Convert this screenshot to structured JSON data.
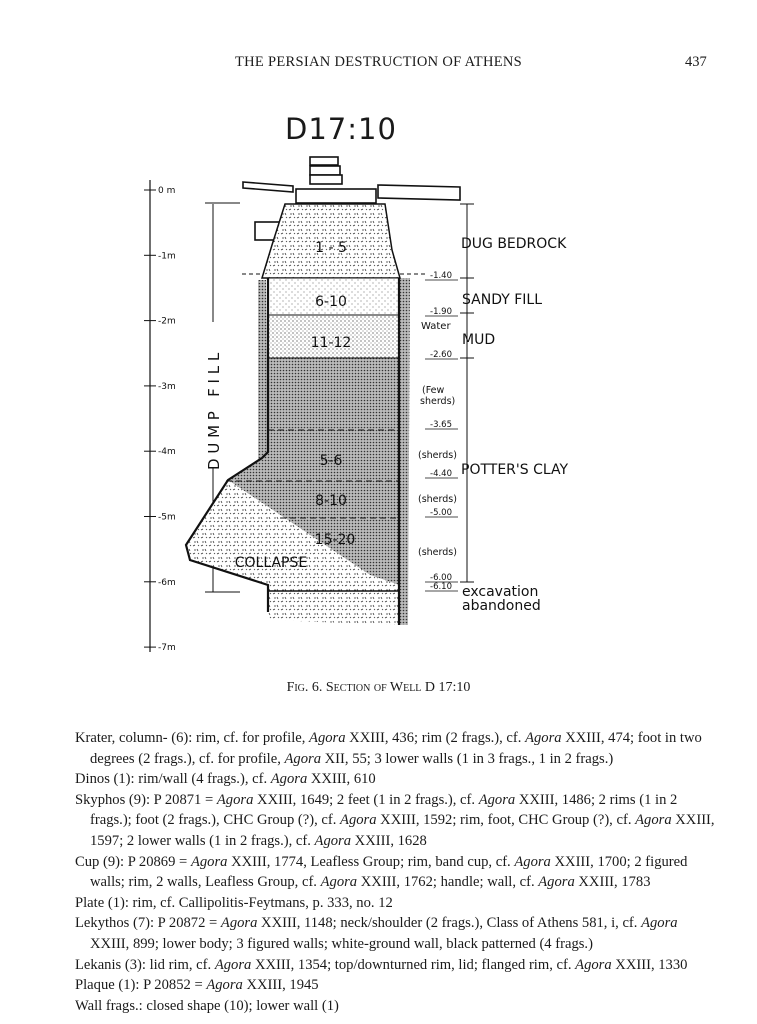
{
  "header": {
    "running_title": "THE PERSIAN DESTRUCTION OF ATHENS",
    "page_number": "437"
  },
  "figure": {
    "title": "D17:10",
    "scale_labels": [
      "0 m",
      "-1m",
      "-2m",
      "-3m",
      "-4m",
      "-5m",
      "-6m",
      "-7m"
    ],
    "dump_fill_label": "D U M P   F I L L",
    "layer_labels": [
      "1 - 5",
      "6-10",
      "11-12",
      "5-6",
      "8-10",
      "15-20",
      "COLLAPSE"
    ],
    "strata": [
      "DUG BEDROCK",
      "SANDY FILL",
      "MUD",
      "POTTER'S CLAY"
    ],
    "depths": [
      "-1.40",
      "-1.90",
      "-2.60",
      "-3.65",
      "-4.40",
      "-5.00",
      "-6.00",
      "-6.10"
    ],
    "water_label": "Water",
    "notes": [
      "(Few",
      "sherds)",
      "(sherds)",
      "(sherds)",
      "(sherds)"
    ],
    "excavation_note": [
      "excavation",
      "abandoned"
    ],
    "caption": "Fig. 6. Section of Well D 17:10"
  },
  "entries": [
    [
      {
        "t": "Krater, column- (6):  rim, cf. for profile, "
      },
      {
        "t": "Agora",
        "i": true
      },
      {
        "t": " XXIII, 436; rim (2 frags.), cf. "
      },
      {
        "t": "Agora",
        "i": true
      },
      {
        "t": " XXIII, 474; foot in two degrees (2 frags.), cf. for profile, "
      },
      {
        "t": "Agora",
        "i": true
      },
      {
        "t": " XII, 55; 3 lower walls (1 in 3 frags., 1 in 2 frags.)"
      }
    ],
    [
      {
        "t": "Dinos (1):  rim/wall (4 frags.), cf. "
      },
      {
        "t": "Agora",
        "i": true
      },
      {
        "t": " XXIII, 610"
      }
    ],
    [
      {
        "t": "Skyphos (9):  P 20871 = "
      },
      {
        "t": "Agora",
        "i": true
      },
      {
        "t": " XXIII, 1649; 2 feet (1 in 2 frags.), cf. "
      },
      {
        "t": "Agora",
        "i": true
      },
      {
        "t": " XXIII, 1486; 2 rims (1 in 2 frags.); foot (2 frags.), CHC Group (?), cf. "
      },
      {
        "t": "Agora",
        "i": true
      },
      {
        "t": " XXIII, 1592; rim, foot, CHC Group (?), cf. "
      },
      {
        "t": "Agora",
        "i": true
      },
      {
        "t": " XXIII, 1597; 2 lower walls (1 in 2 frags.), cf. "
      },
      {
        "t": "Agora",
        "i": true
      },
      {
        "t": " XXIII, 1628"
      }
    ],
    [
      {
        "t": "Cup (9):  P 20869 = "
      },
      {
        "t": "Agora",
        "i": true
      },
      {
        "t": " XXIII, 1774, Leafless Group; rim, band cup, cf. "
      },
      {
        "t": "Agora",
        "i": true
      },
      {
        "t": " XXIII, 1700; 2 figured walls; rim, 2 walls, Leafless Group, cf. "
      },
      {
        "t": "Agora",
        "i": true
      },
      {
        "t": " XXIII, 1762; handle; wall, cf. "
      },
      {
        "t": "Agora",
        "i": true
      },
      {
        "t": " XXIII, 1783"
      }
    ],
    [
      {
        "t": "Plate (1):  rim, cf. Callipolitis-Feytmans, p. 333, no. 12"
      }
    ],
    [
      {
        "t": "Lekythos (7):  P 20872 = "
      },
      {
        "t": "Agora",
        "i": true
      },
      {
        "t": " XXIII, 1148; neck/shoulder (2 frags.), Class of Athens 581, i, cf. "
      },
      {
        "t": "Agora",
        "i": true
      },
      {
        "t": " XXIII, 899; lower body; 3 figured walls; white-ground wall, black patterned (4 frags.)"
      }
    ],
    [
      {
        "t": "Lekanis (3):  lid rim, cf. "
      },
      {
        "t": "Agora",
        "i": true
      },
      {
        "t": " XXIII, 1354; top/downturned rim, lid; flanged rim, cf. "
      },
      {
        "t": "Agora",
        "i": true
      },
      {
        "t": " XXIII, 1330"
      }
    ],
    [
      {
        "t": "Plaque (1):  P 20852 = "
      },
      {
        "t": "Agora",
        "i": true
      },
      {
        "t": " XXIII, 1945"
      }
    ],
    [
      {
        "t": "Wall frags.:  closed shape (10); lower wall (1)"
      }
    ]
  ]
}
